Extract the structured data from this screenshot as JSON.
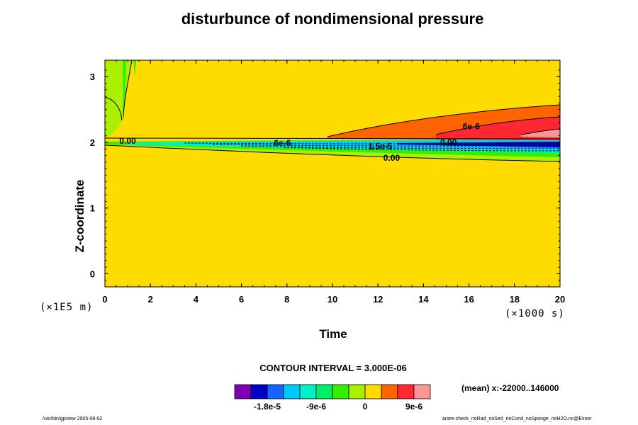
{
  "chart_data": {
    "type": "heatmap",
    "title": "disturbunce of nondimensional pressure",
    "xlabel": "Time",
    "ylabel": "Z-coordinate",
    "x_scale_label": "(×1000 s)",
    "y_scale_label": "(×1E5 m)",
    "xlim": [
      0,
      20
    ],
    "ylim": [
      -0.2,
      3.25
    ],
    "x_ticks": [
      "0",
      "2",
      "4",
      "6",
      "8",
      "10",
      "12",
      "14",
      "16",
      "18",
      "20"
    ],
    "y_ticks": [
      "0",
      "1",
      "2",
      "3"
    ],
    "contour_interval_text": "CONTOUR INTERVAL = 3.000E-06",
    "mean_text": "(mean) x:-22000..146000",
    "contour_labels": [
      {
        "text": "0.00",
        "x": 1.0,
        "y": 2.02
      },
      {
        "text": "6e-6",
        "x": 7.8,
        "y": 1.99
      },
      {
        "text": "1.5e-5",
        "x": 12.1,
        "y": 1.94
      },
      {
        "text": "0.00",
        "x": 12.6,
        "y": 1.76
      },
      {
        "text": "0.00",
        "x": 15.1,
        "y": 2.0
      },
      {
        "text": "6e-6",
        "x": 16.1,
        "y": 2.24
      }
    ],
    "colorbar": {
      "colors": [
        "#7f00b2",
        "#0000c8",
        "#1464ff",
        "#00c8ff",
        "#00f0c8",
        "#00f064",
        "#33f000",
        "#aaf000",
        "#ffdc00",
        "#ff6400",
        "#ff2832",
        "#ff9696"
      ],
      "labels": [
        "-1.8e-5",
        "-9e-6",
        "0",
        "9e-6"
      ]
    },
    "background_color": "#ffdc00"
  },
  "footer": {
    "left": "/usr/bin/gpview 2005-08-02",
    "right": "arare-check_noRad_noSed_noCond_noSponge_noH2O.nc@Exner"
  }
}
